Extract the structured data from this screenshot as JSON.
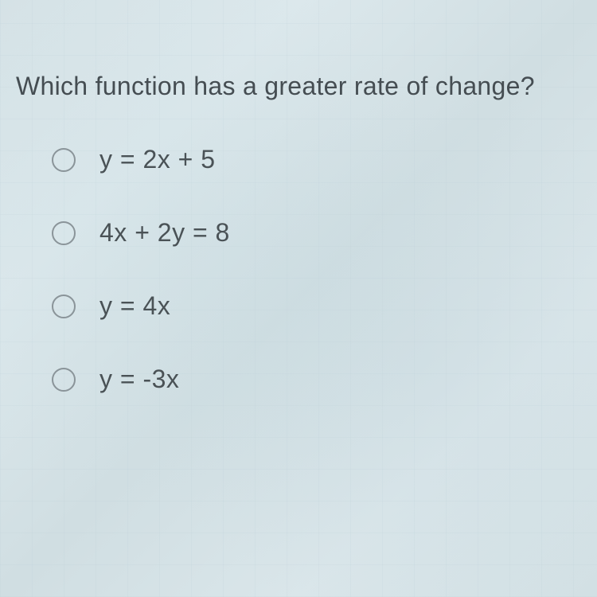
{
  "question": {
    "prompt": "Which function has a greater rate of change?",
    "options": [
      {
        "label": "y = 2x + 5"
      },
      {
        "label": "4x + 2y = 8"
      },
      {
        "label": "y = 4x"
      },
      {
        "label": "y = -3x"
      }
    ]
  },
  "styling": {
    "background_color": "#d8e4e8",
    "text_color": "#4a5256",
    "radio_border_color": "#8a9499",
    "font_size_question": 32,
    "font_size_option": 32,
    "radio_diameter": 30,
    "option_spacing": 55
  }
}
